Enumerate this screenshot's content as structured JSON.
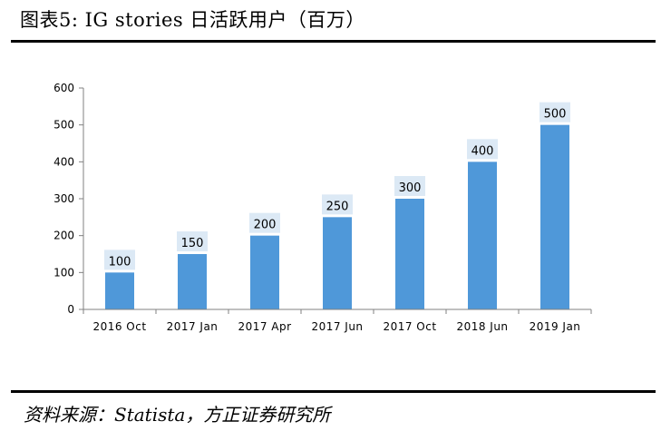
{
  "figure": {
    "title": "图表5:   IG stories 日活跃用户（百万）",
    "source": "资料来源：Statista，方正证券研究所"
  },
  "chart_data": {
    "type": "bar",
    "title": "IG stories 日活跃用户（百万）",
    "xlabel": "",
    "ylabel": "",
    "categories": [
      "2016 Oct",
      "2017 Jan",
      "2017 Apr",
      "2017 Jun",
      "2017 Oct",
      "2018 Jun",
      "2019 Jan"
    ],
    "values": [
      100,
      150,
      200,
      250,
      300,
      400,
      500
    ],
    "ylim": [
      0,
      600
    ],
    "yticks": [
      0,
      100,
      200,
      300,
      400,
      500,
      600
    ],
    "data_labels": [
      "100",
      "150",
      "200",
      "250",
      "300",
      "400",
      "500"
    ],
    "bar_color": "#4f98d9",
    "label_bg_color": "#dce9f5",
    "grid": false,
    "legend": "none"
  }
}
